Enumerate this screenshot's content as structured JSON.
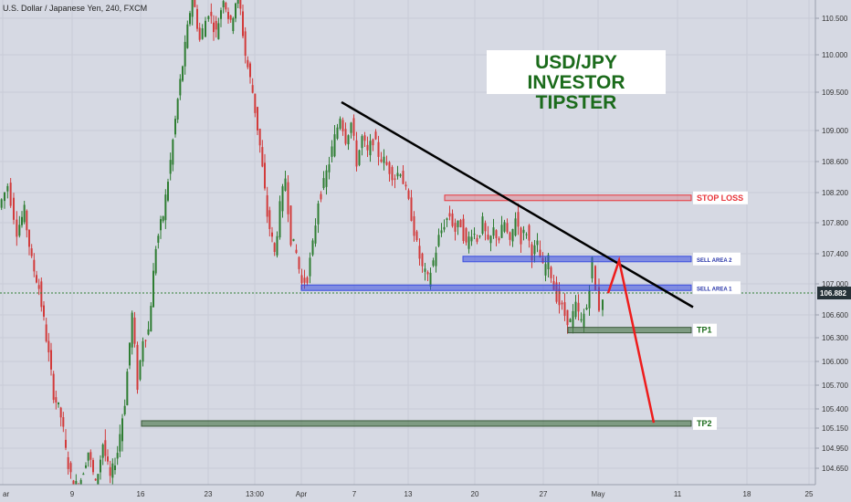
{
  "symbol_title": "U.S. Dollar / Japanese Yen, 240, FXCM",
  "brand": {
    "line1": "USD/JPY",
    "line2": "INVESTOR TIPSTER"
  },
  "colors": {
    "background": "#d6d9e3",
    "up_candle": "#2e7d32",
    "down_candle": "#d23b3b",
    "trendline": "#000000",
    "stop_loss": "#e8343a",
    "sell_zone": "#3a4de0",
    "target": "#4f7a4f",
    "arrow": "#ee1c1c",
    "price_tag": "#263238"
  },
  "chart_data": {
    "type": "candlestick",
    "title": "U.S. Dollar / Japanese Yen, 240, FXCM",
    "ylim": [
      104.45,
      110.75
    ],
    "y_ticks": [
      104.65,
      104.95,
      105.15,
      105.4,
      105.7,
      106.0,
      106.3,
      106.6,
      107.0,
      107.4,
      107.8,
      108.2,
      108.6,
      109.0,
      109.5,
      110.0,
      110.5
    ],
    "x_ticks": [
      "ar",
      "9",
      "16",
      "23",
      "13:00",
      "Apr",
      "7",
      "13",
      "20",
      "27",
      "May",
      "11",
      "18",
      "25"
    ],
    "current_price": 106.882,
    "price_path": [
      [
        0,
        108.0
      ],
      [
        10,
        108.3
      ],
      [
        20,
        107.7
      ],
      [
        28,
        107.95
      ],
      [
        36,
        107.3
      ],
      [
        44,
        106.95
      ],
      [
        52,
        106.3
      ],
      [
        60,
        105.6
      ],
      [
        68,
        105.3
      ],
      [
        76,
        104.7
      ],
      [
        82,
        104.35
      ],
      [
        90,
        104.5
      ],
      [
        98,
        104.9
      ],
      [
        106,
        104.4
      ],
      [
        114,
        105.0
      ],
      [
        122,
        104.5
      ],
      [
        130,
        104.9
      ],
      [
        138,
        105.5
      ],
      [
        146,
        106.6
      ],
      [
        152,
        105.7
      ],
      [
        158,
        106.3
      ],
      [
        164,
        106.4
      ],
      [
        172,
        107.5
      ],
      [
        180,
        107.9
      ],
      [
        188,
        108.6
      ],
      [
        196,
        109.4
      ],
      [
        204,
        110.1
      ],
      [
        212,
        110.85
      ],
      [
        220,
        110.2
      ],
      [
        230,
        110.6
      ],
      [
        238,
        110.3
      ],
      [
        246,
        110.8
      ],
      [
        254,
        110.4
      ],
      [
        262,
        110.9
      ],
      [
        270,
        110.0
      ],
      [
        278,
        109.5
      ],
      [
        286,
        108.8
      ],
      [
        294,
        107.9
      ],
      [
        302,
        107.4
      ],
      [
        308,
        108.0
      ],
      [
        314,
        108.4
      ],
      [
        320,
        107.6
      ],
      [
        326,
        107.4
      ],
      [
        332,
        107.0
      ],
      [
        338,
        107.1
      ],
      [
        344,
        107.5
      ],
      [
        350,
        108.1
      ],
      [
        356,
        108.3
      ],
      [
        362,
        108.6
      ],
      [
        368,
        108.9
      ],
      [
        374,
        109.2
      ],
      [
        380,
        108.9
      ],
      [
        386,
        109.1
      ],
      [
        392,
        108.6
      ],
      [
        398,
        108.9
      ],
      [
        404,
        108.7
      ],
      [
        410,
        108.9
      ],
      [
        416,
        108.7
      ],
      [
        422,
        108.6
      ],
      [
        428,
        108.5
      ],
      [
        434,
        108.4
      ],
      [
        440,
        108.5
      ],
      [
        446,
        108.2
      ],
      [
        452,
        107.9
      ],
      [
        458,
        107.5
      ],
      [
        464,
        107.2
      ],
      [
        470,
        107.05
      ],
      [
        476,
        107.3
      ],
      [
        482,
        107.6
      ],
      [
        488,
        107.8
      ],
      [
        494,
        107.9
      ],
      [
        500,
        107.7
      ],
      [
        506,
        107.8
      ],
      [
        512,
        107.5
      ],
      [
        518,
        107.7
      ],
      [
        524,
        107.6
      ],
      [
        530,
        107.8
      ],
      [
        536,
        107.5
      ],
      [
        542,
        107.7
      ],
      [
        548,
        107.6
      ],
      [
        554,
        107.8
      ],
      [
        560,
        107.5
      ],
      [
        566,
        107.9
      ],
      [
        572,
        107.6
      ],
      [
        578,
        107.7
      ],
      [
        584,
        107.4
      ],
      [
        590,
        107.5
      ],
      [
        596,
        107.2
      ],
      [
        602,
        107.3
      ],
      [
        608,
        106.95
      ],
      [
        614,
        106.75
      ],
      [
        620,
        106.6
      ],
      [
        626,
        106.5
      ],
      [
        632,
        106.7
      ],
      [
        638,
        106.5
      ],
      [
        644,
        106.7
      ],
      [
        650,
        107.3
      ],
      [
        654,
        106.9
      ],
      [
        658,
        106.7
      ],
      [
        662,
        106.85
      ]
    ],
    "annotations": {
      "trendline": {
        "from": [
          374,
          109.37
        ],
        "to": [
          759,
          106.7
        ]
      },
      "stop_loss": {
        "label": "STOP LOSS",
        "price": 108.13,
        "x_start": 487,
        "x_end": 757
      },
      "sell_area_2": {
        "label": "SELL AREA 2",
        "price": 107.33,
        "x_start": 507,
        "x_end": 757
      },
      "sell_area_1": {
        "label": "SELL AREA 1",
        "price": 106.95,
        "x_start": 330,
        "x_end": 757
      },
      "tp1": {
        "label": "TP1",
        "price": 106.4,
        "x_start": 622,
        "x_end": 757
      },
      "tp2": {
        "label": "TP2",
        "price": 105.21,
        "x_start": 155,
        "x_end": 757
      },
      "arrow_path": [
        [
          666,
          106.88
        ],
        [
          678,
          107.31
        ],
        [
          716,
          105.22
        ]
      ]
    }
  }
}
